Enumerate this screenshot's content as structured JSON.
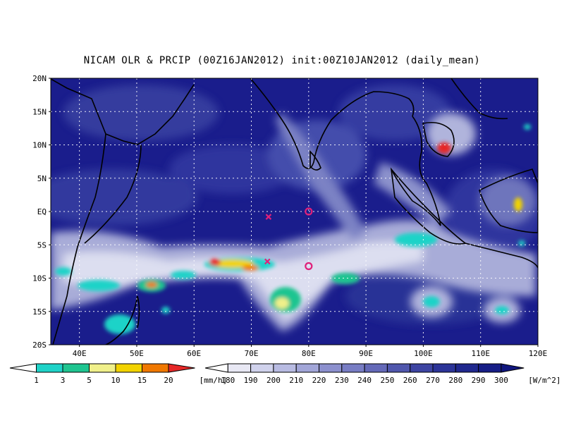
{
  "title": "NICAM OLR & PRCIP (00Z16JAN2012) init:00Z10JAN2012 (daily_mean)",
  "map": {
    "lon_range": [
      35,
      120
    ],
    "lat_range": [
      -20,
      20
    ],
    "lat_ticks": [
      "20N",
      "15N",
      "10N",
      "5N",
      "EQ",
      "5S",
      "10S",
      "15S",
      "20S"
    ],
    "lat_values": [
      20,
      15,
      10,
      5,
      0,
      -5,
      -10,
      -15,
      -20
    ],
    "lon_ticks": [
      "40E",
      "50E",
      "60E",
      "70E",
      "80E",
      "90E",
      "100E",
      "110E",
      "120E"
    ],
    "lon_values": [
      40,
      50,
      60,
      70,
      80,
      90,
      100,
      110,
      120
    ],
    "background_color": "#1a1d8c",
    "grid": true
  },
  "markers": [
    {
      "symbol": "x",
      "lon": 73,
      "lat": -0.8,
      "color": "#e0207a"
    },
    {
      "symbol": "o",
      "lon": 80,
      "lat": 0,
      "color": "#e0207a"
    },
    {
      "symbol": "x",
      "lon": 72.8,
      "lat": -7.5,
      "color": "#e0207a"
    },
    {
      "symbol": "o",
      "lon": 80,
      "lat": -8.2,
      "color": "#e0207a"
    }
  ],
  "precip_legend": {
    "labels": [
      "1",
      "3",
      "5",
      "10",
      "15",
      "20"
    ],
    "unit": "[mm/h]",
    "colors": [
      "#ffffff",
      "#1fd3c8",
      "#1fc590",
      "#f0f08a",
      "#f2d300",
      "#f07800",
      "#e62828"
    ]
  },
  "olr_legend": {
    "labels": [
      "180",
      "190",
      "200",
      "210",
      "220",
      "230",
      "240",
      "250",
      "260",
      "270",
      "280",
      "290",
      "300"
    ],
    "unit": "[W/m^2]",
    "colors": [
      "#ffffff",
      "#e8e8f4",
      "#d0d2ec",
      "#b8bbe2",
      "#a2a6d8",
      "#8c90ce",
      "#787dc4",
      "#6469b8",
      "#5057ad",
      "#3d44a2",
      "#2c3498",
      "#20288e",
      "#161d86",
      "#10167e"
    ]
  },
  "icons": [
    "cross-marker-icon",
    "circle-marker-icon"
  ]
}
